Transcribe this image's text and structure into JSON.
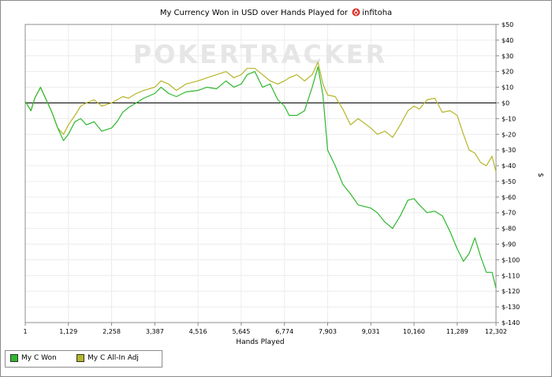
{
  "title": {
    "prefix": "My Currency Won in USD over Hands Played for",
    "player": "infitoha"
  },
  "watermark": "POKERTRACKER",
  "colors": {
    "won": "#2eb82e",
    "allin": "#b5b52a",
    "zero_line": "#000000",
    "grid": "#ececec"
  },
  "legend": [
    {
      "label": "My C Won",
      "color": "#2eb82e"
    },
    {
      "label": "My C All-In Adj",
      "color": "#b5b52a"
    }
  ],
  "chart_data": {
    "type": "line",
    "xlabel": "Hands Played",
    "ylabel": "$",
    "xlim": [
      1,
      12302
    ],
    "ylim": [
      -140,
      50
    ],
    "x_ticks": [
      1,
      1129,
      2258,
      3387,
      4516,
      5645,
      6774,
      7903,
      9031,
      10160,
      11289,
      12302
    ],
    "x_tick_labels": [
      "1",
      "1,129",
      "2,258",
      "3,387",
      "4,516",
      "5,645",
      "6,774",
      "7,903",
      "9,031",
      "10,160",
      "11,289",
      "12,302"
    ],
    "y_ticks": [
      50,
      40,
      30,
      20,
      10,
      0,
      -10,
      -20,
      -30,
      -40,
      -50,
      -60,
      -70,
      -80,
      -90,
      -100,
      -110,
      -120,
      -130,
      -140
    ],
    "y_tick_labels": [
      "$50",
      "$40",
      "$30",
      "$20",
      "$10",
      "$0",
      "$-10",
      "$-20",
      "$-30",
      "$-40",
      "$-50",
      "$-60",
      "$-70",
      "$-80",
      "$-90",
      "$-100",
      "$-110",
      "$-120",
      "$-130",
      "$-140"
    ],
    "grid": true,
    "legend_position": "bottom-left",
    "series": [
      {
        "name": "My C Won",
        "x": [
          1,
          150,
          250,
          400,
          550,
          700,
          850,
          1000,
          1129,
          1300,
          1450,
          1600,
          1800,
          2000,
          2258,
          2400,
          2550,
          2700,
          2900,
          3100,
          3387,
          3550,
          3750,
          3950,
          4200,
          4516,
          4750,
          5000,
          5250,
          5450,
          5645,
          5800,
          6000,
          6200,
          6400,
          6600,
          6774,
          6900,
          7100,
          7300,
          7500,
          7650,
          7780,
          7903,
          8100,
          8300,
          8500,
          8700,
          9031,
          9200,
          9400,
          9600,
          9800,
          10000,
          10160,
          10300,
          10500,
          10700,
          10900,
          11100,
          11289,
          11450,
          11600,
          11750,
          11900,
          12050,
          12200,
          12302
        ],
        "y": [
          1,
          -5,
          3,
          10,
          2,
          -6,
          -16,
          -24,
          -20,
          -12,
          -10,
          -14,
          -12,
          -18,
          -16,
          -12,
          -6,
          -3,
          0,
          3,
          6,
          10,
          6,
          4,
          7,
          8,
          10,
          9,
          14,
          10,
          12,
          18,
          20,
          10,
          12,
          2,
          -2,
          -8,
          -8,
          -5,
          10,
          23,
          5,
          -30,
          -40,
          -52,
          -58,
          -65,
          -67,
          -70,
          -76,
          -80,
          -72,
          -62,
          -61,
          -65,
          -70,
          -69,
          -72,
          -82,
          -93,
          -101,
          -96,
          -86,
          -98,
          -108,
          -108,
          -118
        ]
      },
      {
        "name": "My C All-In Adj",
        "x": [
          1,
          150,
          250,
          400,
          550,
          700,
          850,
          1000,
          1129,
          1300,
          1450,
          1600,
          1800,
          2000,
          2258,
          2400,
          2550,
          2700,
          2900,
          3100,
          3387,
          3550,
          3750,
          3950,
          4200,
          4516,
          4750,
          5000,
          5250,
          5450,
          5645,
          5800,
          6000,
          6200,
          6400,
          6600,
          6774,
          6900,
          7100,
          7300,
          7500,
          7650,
          7780,
          7903,
          8100,
          8300,
          8500,
          8700,
          9031,
          9200,
          9400,
          9600,
          9800,
          10000,
          10160,
          10300,
          10500,
          10700,
          10900,
          11100,
          11289,
          11450,
          11600,
          11750,
          11900,
          12050,
          12200,
          12302
        ],
        "y": [
          1,
          -5,
          3,
          10,
          2,
          -6,
          -16,
          -20,
          -14,
          -8,
          -2,
          0,
          2,
          -2,
          0,
          2,
          4,
          3,
          6,
          8,
          10,
          14,
          12,
          8,
          12,
          14,
          16,
          18,
          20,
          16,
          18,
          22,
          22,
          18,
          14,
          12,
          14,
          16,
          18,
          14,
          18,
          26,
          12,
          5,
          4,
          -4,
          -14,
          -10,
          -16,
          -20,
          -18,
          -22,
          -14,
          -5,
          -2,
          -4,
          2,
          3,
          -6,
          -5,
          -8,
          -20,
          -30,
          -32,
          -38,
          -40,
          -34,
          -44
        ]
      }
    ]
  }
}
